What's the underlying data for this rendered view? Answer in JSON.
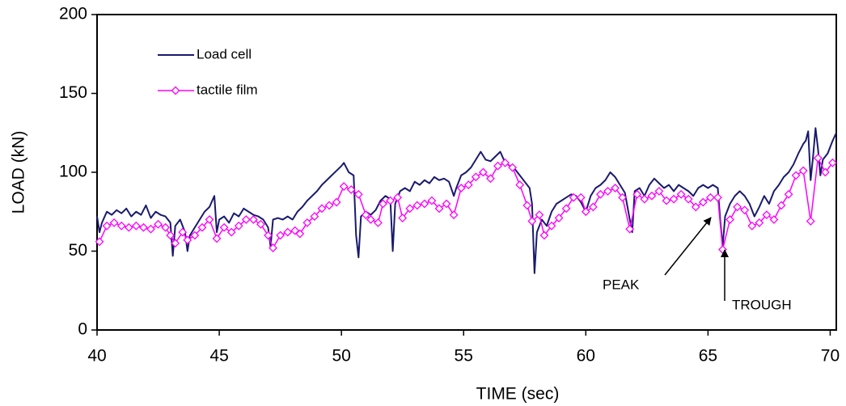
{
  "chart_data": {
    "type": "line",
    "xlabel": "TIME (sec)",
    "ylabel": "LOAD (kN)",
    "xlim": [
      40,
      70.25
    ],
    "ylim": [
      0,
      200
    ],
    "xticks": [
      40,
      45,
      50,
      55,
      60,
      65,
      70
    ],
    "yticks": [
      0,
      50,
      100,
      150,
      200
    ],
    "grid": false,
    "legend": "upper left",
    "annotations": [
      {
        "text": "PEAK"
      },
      {
        "text": "TROUGH"
      }
    ],
    "series": [
      {
        "name": "Load cell",
        "color": "#1a1a6e",
        "marker": "none",
        "x": [
          40.0,
          40.1,
          40.2,
          40.4,
          40.6,
          40.8,
          41.0,
          41.2,
          41.4,
          41.6,
          41.8,
          42.0,
          42.2,
          42.4,
          42.6,
          42.8,
          43.0,
          43.1,
          43.2,
          43.4,
          43.6,
          43.7,
          43.8,
          44.0,
          44.2,
          44.4,
          44.6,
          44.8,
          44.9,
          45.0,
          45.2,
          45.4,
          45.6,
          45.8,
          46.0,
          46.2,
          46.4,
          46.6,
          46.8,
          47.0,
          47.1,
          47.2,
          47.4,
          47.6,
          47.8,
          48.0,
          48.2,
          48.4,
          48.6,
          48.8,
          49.0,
          49.2,
          49.4,
          49.6,
          49.8,
          50.0,
          50.1,
          50.3,
          50.5,
          50.6,
          50.7,
          50.8,
          51.0,
          51.2,
          51.4,
          51.6,
          51.8,
          52.0,
          52.1,
          52.2,
          52.4,
          52.6,
          52.8,
          53.0,
          53.2,
          53.4,
          53.6,
          53.8,
          54.0,
          54.2,
          54.4,
          54.6,
          54.7,
          54.9,
          55.1,
          55.3,
          55.5,
          55.7,
          55.9,
          56.1,
          56.3,
          56.5,
          56.7,
          56.9,
          57.1,
          57.3,
          57.5,
          57.7,
          57.8,
          57.9,
          58.0,
          58.2,
          58.4,
          58.6,
          58.8,
          59.0,
          59.2,
          59.4,
          59.6,
          59.8,
          60.0,
          60.2,
          60.4,
          60.6,
          60.8,
          61.0,
          61.2,
          61.4,
          61.6,
          61.8,
          61.9,
          62.0,
          62.2,
          62.4,
          62.6,
          62.8,
          63.0,
          63.2,
          63.4,
          63.6,
          63.8,
          64.0,
          64.2,
          64.4,
          64.6,
          64.8,
          65.0,
          65.2,
          65.4,
          65.5,
          65.6,
          65.7,
          65.9,
          66.1,
          66.3,
          66.5,
          66.7,
          66.9,
          67.1,
          67.3,
          67.5,
          67.7,
          67.9,
          68.1,
          68.3,
          68.5,
          68.7,
          68.9,
          69.0,
          69.1,
          69.2,
          69.3,
          69.4,
          69.5,
          69.6,
          69.7,
          69.9,
          70.1,
          70.25
        ],
        "values": [
          72,
          62,
          68,
          75,
          73,
          76,
          74,
          77,
          72,
          75,
          73,
          79,
          71,
          75,
          73,
          72,
          68,
          47,
          66,
          70,
          62,
          50,
          60,
          65,
          70,
          75,
          78,
          85,
          62,
          70,
          72,
          68,
          74,
          72,
          77,
          75,
          73,
          72,
          70,
          65,
          53,
          70,
          71,
          70,
          72,
          70,
          75,
          78,
          82,
          85,
          88,
          92,
          95,
          98,
          101,
          104,
          106,
          100,
          98,
          60,
          46,
          72,
          75,
          73,
          76,
          82,
          85,
          83,
          50,
          80,
          88,
          90,
          88,
          94,
          92,
          95,
          93,
          97,
          95,
          96,
          94,
          85,
          90,
          98,
          100,
          103,
          108,
          113,
          108,
          107,
          110,
          113,
          106,
          104,
          102,
          98,
          94,
          90,
          80,
          36,
          62,
          70,
          66,
          75,
          80,
          82,
          84,
          86,
          85,
          81,
          75,
          85,
          90,
          92,
          95,
          100,
          97,
          92,
          87,
          70,
          62,
          88,
          90,
          85,
          92,
          96,
          93,
          90,
          92,
          88,
          92,
          90,
          88,
          85,
          90,
          92,
          90,
          92,
          90,
          70,
          53,
          72,
          80,
          85,
          88,
          85,
          80,
          72,
          78,
          85,
          80,
          88,
          92,
          97,
          100,
          105,
          112,
          118,
          120,
          126,
          95,
          110,
          128,
          115,
          98,
          108,
          112,
          120,
          125
        ]
      },
      {
        "name": "tactile film",
        "color": "#ff00ff",
        "marker": "diamond",
        "x": [
          40.1,
          40.4,
          40.7,
          41.0,
          41.3,
          41.6,
          41.9,
          42.2,
          42.5,
          42.8,
          43.0,
          43.2,
          43.5,
          43.7,
          44.0,
          44.3,
          44.6,
          44.9,
          45.2,
          45.5,
          45.8,
          46.1,
          46.4,
          46.7,
          47.0,
          47.2,
          47.5,
          47.8,
          48.1,
          48.3,
          48.6,
          48.9,
          49.2,
          49.5,
          49.8,
          50.1,
          50.4,
          50.7,
          51.0,
          51.2,
          51.5,
          51.7,
          52.0,
          52.3,
          52.5,
          52.8,
          53.1,
          53.4,
          53.7,
          54.0,
          54.3,
          54.6,
          54.9,
          55.2,
          55.5,
          55.8,
          56.1,
          56.4,
          56.7,
          57.0,
          57.3,
          57.6,
          57.8,
          58.1,
          58.3,
          58.6,
          58.9,
          59.2,
          59.5,
          59.8,
          60.0,
          60.3,
          60.6,
          60.9,
          61.2,
          61.5,
          61.8,
          62.1,
          62.4,
          62.7,
          63.0,
          63.3,
          63.6,
          63.9,
          64.2,
          64.5,
          64.8,
          65.1,
          65.4,
          65.6,
          65.9,
          66.2,
          66.5,
          66.8,
          67.1,
          67.4,
          67.7,
          68.0,
          68.3,
          68.6,
          68.9,
          69.2,
          69.5,
          69.8,
          70.1
        ],
        "values": [
          56,
          66,
          68,
          66,
          65,
          66,
          65,
          64,
          67,
          65,
          60,
          55,
          62,
          57,
          60,
          65,
          70,
          58,
          65,
          62,
          66,
          70,
          70,
          67,
          60,
          52,
          60,
          62,
          63,
          61,
          68,
          72,
          77,
          79,
          81,
          91,
          89,
          86,
          73,
          70,
          68,
          80,
          82,
          84,
          71,
          77,
          79,
          80,
          82,
          77,
          80,
          73,
          90,
          92,
          97,
          100,
          96,
          104,
          106,
          103,
          92,
          79,
          69,
          73,
          60,
          66,
          71,
          77,
          84,
          84,
          75,
          78,
          86,
          88,
          90,
          84,
          64,
          86,
          83,
          85,
          88,
          82,
          83,
          86,
          83,
          78,
          81,
          84,
          84,
          51,
          70,
          78,
          76,
          66,
          68,
          73,
          70,
          79,
          86,
          98,
          101,
          69,
          109,
          100,
          106
        ]
      }
    ]
  }
}
